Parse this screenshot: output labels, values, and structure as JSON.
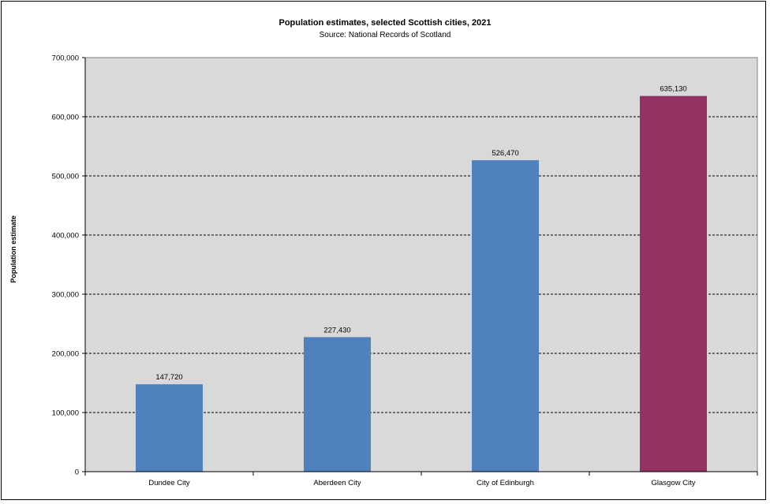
{
  "chart_data": {
    "type": "bar",
    "title": "Population estimates, selected Scottish cities, 2021",
    "subtitle": "Source: National Records of Scotland",
    "xlabel": "",
    "ylabel": "Population estimate",
    "categories": [
      "Dundee City",
      "Aberdeen City",
      "City of Edinburgh",
      "Glasgow City"
    ],
    "values": [
      147720,
      227430,
      526470,
      635130
    ],
    "data_labels": [
      "147,720",
      "227,430",
      "526,470",
      "635,130"
    ],
    "bar_colors": [
      "#4f81bd",
      "#4f81bd",
      "#4f81bd",
      "#953163"
    ],
    "ylim": [
      0,
      700000
    ],
    "yticks": [
      0,
      100000,
      200000,
      300000,
      400000,
      500000,
      600000,
      700000
    ],
    "ytick_labels": [
      "0",
      "100,000",
      "200,000",
      "300,000",
      "400,000",
      "500,000",
      "600,000",
      "700,000"
    ],
    "grid": true,
    "legend": "none",
    "plot_background": "#d9d9d9"
  }
}
